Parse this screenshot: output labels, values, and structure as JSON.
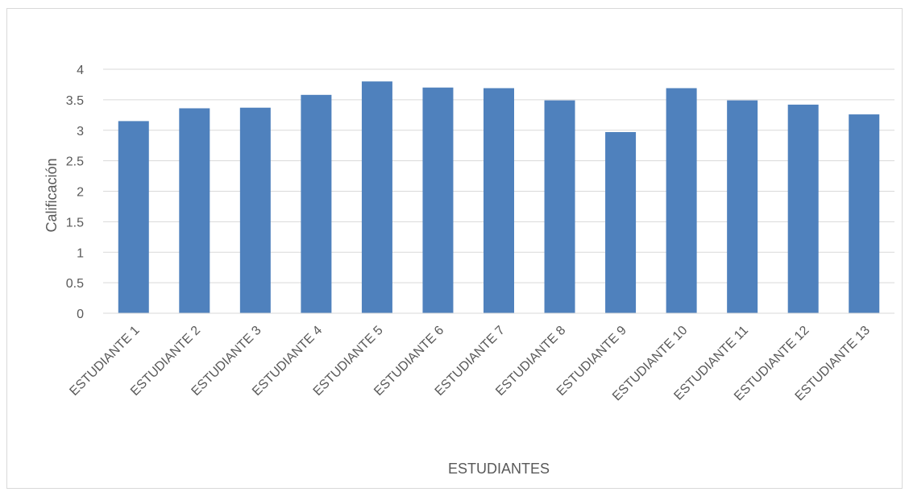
{
  "chart_data": {
    "type": "bar",
    "title": "",
    "xlabel": "ESTUDIANTES",
    "ylabel": "Calificación",
    "categories": [
      "ESTUDIANTE 1",
      "ESTUDIANTE 2",
      "ESTUDIANTE 3",
      "ESTUDIANTE 4",
      "ESTUDIANTE 5",
      "ESTUDIANTE 6",
      "ESTUDIANTE 7",
      "ESTUDIANTE 8",
      "ESTUDIANTE 9",
      "ESTUDIANTE 10",
      "ESTUDIANTE 11",
      "ESTUDIANTE 12",
      "ESTUDIANTE 13"
    ],
    "values": [
      3.15,
      3.36,
      3.37,
      3.58,
      3.8,
      3.7,
      3.69,
      3.49,
      2.97,
      3.69,
      3.49,
      3.42,
      3.26
    ],
    "ylim": [
      0,
      4
    ],
    "yticks": [
      "0",
      "0.5",
      "1",
      "1.5",
      "2",
      "2.5",
      "3",
      "3.5",
      "4"
    ],
    "grid": true,
    "legend": "none",
    "bar_color": "#4f81bd",
    "grid_color": "#d9d9d9",
    "text_color": "#595959"
  }
}
